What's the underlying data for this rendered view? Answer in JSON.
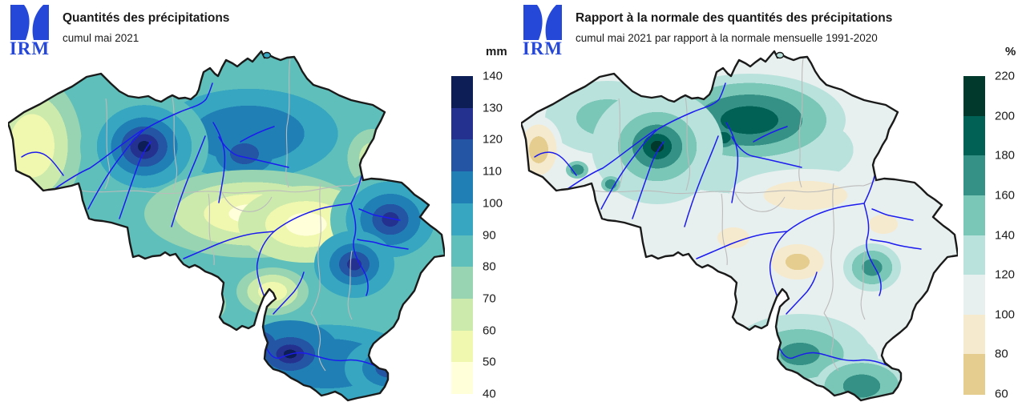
{
  "figure": {
    "background": "#ffffff",
    "logo_text": "IRM"
  },
  "colors": {
    "logo_blue": "#2648D8",
    "river_blue": "#1C1CEE",
    "province_border": "#BBBBBB",
    "country_border": "#1A1A1A",
    "text": "#1A1A1A"
  },
  "maps": [
    {
      "id": "precipitation",
      "title": "Quantités des précipitations",
      "subtitle": "cumul mai 2021",
      "legend_unit": "mm",
      "legend_ticks_top_to_bottom": [
        "140",
        "130",
        "120",
        "110",
        "100",
        "90",
        "80",
        "70",
        "60",
        "50",
        "40"
      ],
      "scale_min": 40,
      "scale_max": 140,
      "scale_step": 10,
      "palette_low_to_high": [
        "#FFFFD9",
        "#F0F7AF",
        "#CDEAAD",
        "#98D4B2",
        "#5FBFBB",
        "#36A6C1",
        "#2080B5",
        "#2355A4",
        "#24318F",
        "#0C1E55"
      ]
    },
    {
      "id": "ratio-to-normal",
      "title": "Rapport à la normale des quantités des précipitations",
      "subtitle": "cumul mai 2021 par rapport à la normale mensuelle 1991-2020",
      "legend_unit": "%",
      "legend_ticks_top_to_bottom": [
        "220",
        "200",
        "180",
        "160",
        "140",
        "120",
        "100",
        "80",
        "60"
      ],
      "scale_min": 60,
      "scale_max": 220,
      "scale_step": 20,
      "palette_low_to_high": [
        "#E4CD8E",
        "#F5EACE",
        "#E8F0EF",
        "#B9E2DC",
        "#7AC6B7",
        "#359186",
        "#006154",
        "#01392C"
      ]
    }
  ]
}
